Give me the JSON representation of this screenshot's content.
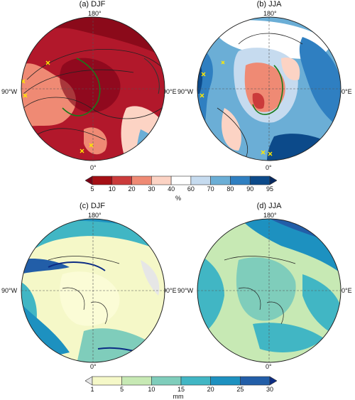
{
  "panels": [
    {
      "id": "a",
      "title": "(a) DJF",
      "top": "180°",
      "bottom": "0°",
      "left": "90°W",
      "right": "90°E"
    },
    {
      "id": "b",
      "title": "(b) JJA",
      "top": "180°",
      "bottom": "0°",
      "left": "90°W",
      "right": "90°E"
    },
    {
      "id": "c",
      "title": "(c) DJF",
      "top": "180°",
      "bottom": "0°",
      "left": "90°W",
      "right": "90°E"
    },
    {
      "id": "d",
      "title": "(d) JJA",
      "top": "180°",
      "bottom": "0°",
      "left": "90°W",
      "right": "90°E"
    }
  ],
  "colorbar_top": {
    "ticks": [
      "5",
      "10",
      "20",
      "30",
      "40",
      "60",
      "70",
      "80",
      "90",
      "95"
    ],
    "unit": "%",
    "colors": [
      "#7a0015",
      "#a50f15",
      "#cb3b3b",
      "#ef8a74",
      "#fcd3c4",
      "#ffffff",
      "#c6dbef",
      "#6baed6",
      "#2f7fc1",
      "#0c4a8a",
      "#062860"
    ]
  },
  "colorbar_bottom": {
    "ticks": [
      "1",
      "5",
      "10",
      "15",
      "20",
      "25",
      "30"
    ],
    "unit": "mm",
    "colors": [
      "#e6e6e6",
      "#f5f8c8",
      "#c7e9b4",
      "#7fcdbb",
      "#41b6c4",
      "#1d91c0",
      "#225ea8",
      "#0c2c84"
    ]
  }
}
